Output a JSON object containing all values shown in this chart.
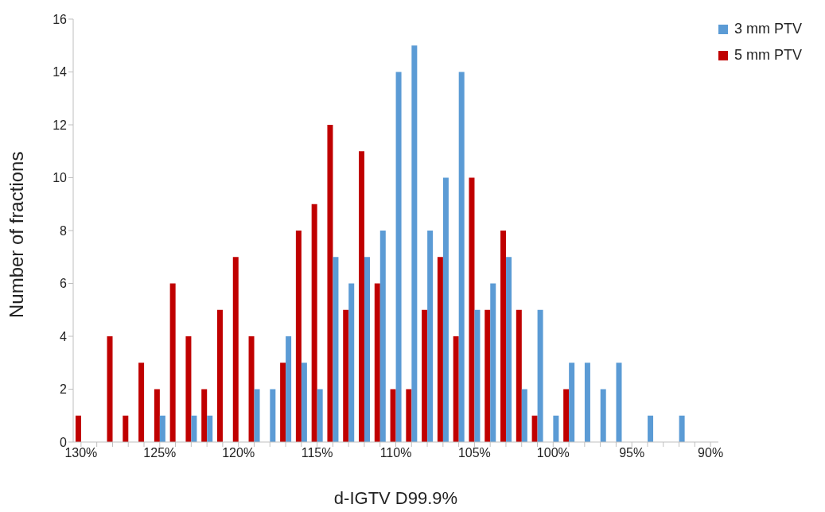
{
  "chart_data": {
    "type": "bar",
    "xlabel": "d-IGTV D99.9%",
    "ylabel": "Number of fractions",
    "categories": [
      "130%",
      null,
      null,
      null,
      null,
      "125%",
      null,
      null,
      null,
      null,
      "120%",
      null,
      null,
      null,
      null,
      "115%",
      null,
      null,
      null,
      null,
      "110%",
      null,
      null,
      null,
      null,
      "105%",
      null,
      null,
      null,
      null,
      "100%",
      null,
      null,
      null,
      null,
      "95%",
      null,
      null,
      null,
      null,
      "90%"
    ],
    "series": [
      {
        "name": "3 mm PTV",
        "color": "#5b9bd5",
        "values": [
          0,
          0,
          0,
          0,
          0,
          1,
          0,
          1,
          1,
          0,
          0,
          2,
          2,
          4,
          3,
          2,
          7,
          6,
          7,
          8,
          14,
          15,
          8,
          10,
          14,
          5,
          6,
          7,
          2,
          5,
          1,
          3,
          3,
          2,
          3,
          0,
          1,
          0,
          1,
          0,
          0
        ]
      },
      {
        "name": "5 mm PTV",
        "color": "#c00000",
        "values": [
          1,
          0,
          4,
          1,
          3,
          2,
          6,
          4,
          2,
          5,
          7,
          4,
          0,
          3,
          8,
          9,
          12,
          5,
          11,
          6,
          2,
          2,
          5,
          7,
          4,
          10,
          5,
          8,
          5,
          1,
          0,
          2,
          0,
          0,
          0,
          0,
          0,
          0,
          0,
          0,
          0
        ]
      }
    ],
    "ylim": [
      0,
      16
    ],
    "yticks": [
      0,
      2,
      4,
      6,
      8,
      10,
      12,
      14,
      16
    ],
    "grid": false,
    "legend": "top right"
  }
}
